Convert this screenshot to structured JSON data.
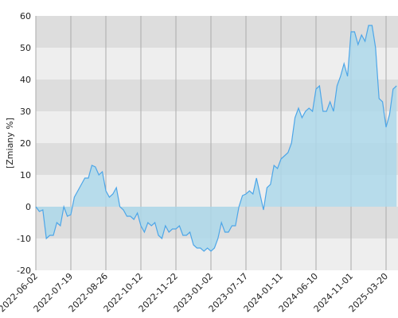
{
  "chart_data": {
    "type": "area",
    "ylabel": "[Zmiany %]",
    "categories": [
      "2022-06-02",
      null,
      null,
      null,
      null,
      null,
      null,
      null,
      null,
      null,
      "2022-07-19",
      null,
      null,
      null,
      null,
      null,
      null,
      null,
      null,
      null,
      "2022-08-26",
      null,
      null,
      null,
      null,
      null,
      null,
      null,
      null,
      null,
      "2022-10-12",
      null,
      null,
      null,
      null,
      null,
      null,
      null,
      null,
      null,
      "2022-11-22",
      null,
      null,
      null,
      null,
      null,
      null,
      null,
      null,
      null,
      "2023-01-02",
      null,
      null,
      null,
      null,
      null,
      null,
      null,
      null,
      null,
      "2023-07-17",
      null,
      null,
      null,
      null,
      null,
      null,
      null,
      null,
      null,
      "2024-01-11",
      null,
      null,
      null,
      null,
      null,
      null,
      null,
      null,
      null,
      "2024-06-10",
      null,
      null,
      null,
      null,
      null,
      null,
      null,
      null,
      null,
      "2024-11-01",
      null,
      null,
      null,
      null,
      null,
      null,
      null,
      null,
      null,
      "2025-03-20",
      null,
      null,
      null
    ],
    "values": [
      0,
      -1.5,
      -1,
      -10,
      -9,
      -9,
      -5,
      -6,
      0,
      -3,
      -2.5,
      3,
      5,
      7,
      9,
      9,
      13,
      12.5,
      10,
      11,
      5,
      3,
      4,
      6,
      0,
      -1,
      -3,
      -3,
      -4,
      -2,
      -6,
      -8,
      -5,
      -6,
      -5,
      -9,
      -10,
      -6,
      -8,
      -7,
      -7,
      -6,
      -9,
      -9,
      -8,
      -12,
      -13,
      -13,
      -14,
      -13,
      -14,
      -13,
      -10,
      -5,
      -8,
      -8,
      -6,
      -6,
      0,
      3.5,
      4,
      5,
      4,
      9,
      4,
      -1,
      6,
      7,
      13,
      12,
      15,
      16,
      17,
      20,
      28,
      31,
      28,
      30,
      31,
      30,
      37,
      38,
      30,
      30,
      33,
      30,
      38,
      41,
      45,
      41,
      55,
      55,
      51,
      54,
      52,
      57,
      57,
      50,
      34,
      33,
      25,
      29,
      37,
      38
    ],
    "color": "#4da6e8",
    "fill": "#add8ea",
    "ylim": [
      -20,
      60
    ],
    "yticks": [
      -20,
      -10,
      0,
      10,
      20,
      30,
      40,
      50,
      60
    ],
    "grid": true
  }
}
